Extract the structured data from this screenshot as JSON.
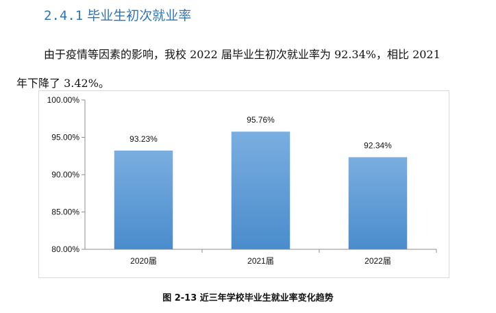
{
  "section": {
    "number": "2.4.1",
    "title": "毕业生初次就业率"
  },
  "paragraph": {
    "line1": "由于疫情等因素的影响，我校 2022 届毕业生初次就业率为 92.34%，相比 2021",
    "line2": "年下降了 3.42%。"
  },
  "chart_data": {
    "type": "bar",
    "categories": [
      "2020届",
      "2021届",
      "2022届"
    ],
    "values": [
      93.23,
      95.76,
      92.34
    ],
    "data_labels": [
      "93.23%",
      "95.76%",
      "92.34%"
    ],
    "ylim": [
      80,
      100
    ],
    "yticks": [
      80,
      85,
      90,
      95,
      100
    ],
    "ytick_labels": [
      "80.00%",
      "85.00%",
      "90.00%",
      "95.00%",
      "100.00%"
    ],
    "grid": false,
    "bar_color": "#5b9bd5",
    "bar_color_top": "#7aaee0",
    "bar_color_bottom": "#4a8ccc"
  },
  "caption": "图 2-13  近三年学校毕业生就业率变化趋势"
}
